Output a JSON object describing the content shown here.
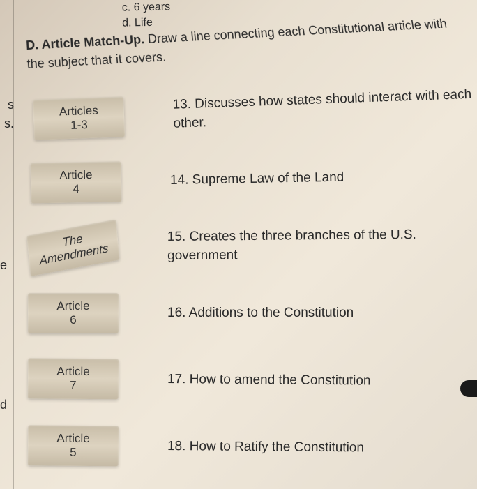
{
  "topOptions": {
    "c": "c. 6 years",
    "d": "d. Life"
  },
  "sectionHeader": {
    "label": "D. Article Match-Up.",
    "instruction": "Draw a line connecting each Constitutional article with the subject that it covers."
  },
  "leftMargin": {
    "s1": "s",
    "s2": "s.",
    "e": "e",
    "d": "d"
  },
  "rows": [
    {
      "article_line1": "Articles",
      "article_line2": "1-3",
      "desc": "13. Discusses how states should interact with each other."
    },
    {
      "article_line1": "Article",
      "article_line2": "4",
      "desc": "14. Supreme Law of the Land"
    },
    {
      "article_line1": "The",
      "article_line2": "Amendments",
      "desc": "15. Creates the three branches of the U.S. government"
    },
    {
      "article_line1": "Article",
      "article_line2": "6",
      "desc": "16. Additions to the Constitution"
    },
    {
      "article_line1": "Article",
      "article_line2": "7",
      "desc": "17. How to amend the Constitution"
    },
    {
      "article_line1": "Article",
      "article_line2": "5",
      "desc": "18. How to Ratify the Constitution"
    }
  ],
  "styling": {
    "background_gradient": [
      "#d4c8b8",
      "#e8dfd0",
      "#f0e8da",
      "#e5ddd0"
    ],
    "text_color": "#2a2a2a",
    "box_gradient": [
      "#c8bda8",
      "#ddd3c0",
      "#c5baa5"
    ],
    "font_family": "Verdana, Geneva, sans-serif",
    "body_fontsize": 19,
    "header_fontsize": 18,
    "box_fontsize": 17
  }
}
